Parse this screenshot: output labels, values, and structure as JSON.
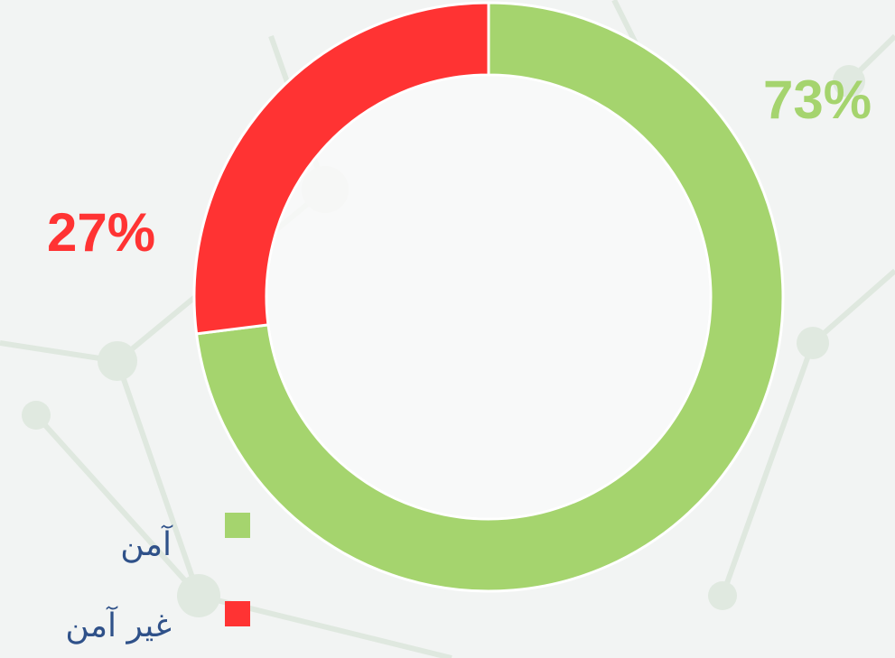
{
  "chart_data": {
    "type": "donut",
    "categories": [
      "آمن",
      "غير آمن"
    ],
    "values": [
      73,
      27
    ],
    "value_labels": [
      "73%",
      "27%"
    ],
    "colors": [
      "#a5d46e",
      "#ff3333"
    ]
  }
}
